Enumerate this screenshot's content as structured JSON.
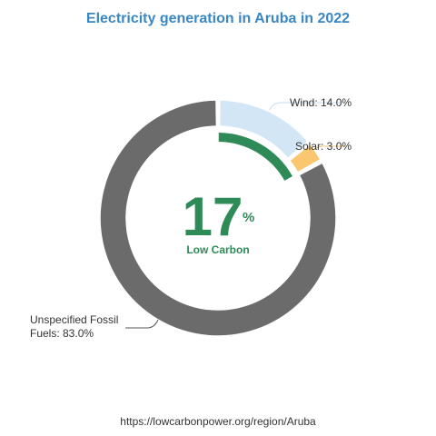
{
  "colors": {
    "title": "#3a87c4",
    "wind": "#d2e6f6",
    "solar": "#fbc670",
    "fossil": "#6b6b6b",
    "low_carbon": "#2e8b57",
    "leader": "#bbbbbb"
  },
  "center": {
    "value": "17",
    "unit": "%",
    "label": "Low Carbon",
    "low_carbon_fraction": 0.17
  },
  "source_url": "https://lowcarbonpower.org/region/Aruba",
  "chart_data": {
    "type": "pie",
    "title": "Electricity generation in Aruba in 2022",
    "slices": [
      {
        "name": "Wind",
        "value": 14.0,
        "label": "Wind: 14.0%",
        "color": "#d2e6f6"
      },
      {
        "name": "Solar",
        "value": 3.0,
        "label": "Solar: 3.0%",
        "color": "#fbc670"
      },
      {
        "name": "Unspecified Fossil Fuels",
        "value": 83.0,
        "label_lines": [
          "Unspecified Fossil",
          "Fuels: 83.0%"
        ],
        "color": "#6b6b6b"
      }
    ]
  }
}
